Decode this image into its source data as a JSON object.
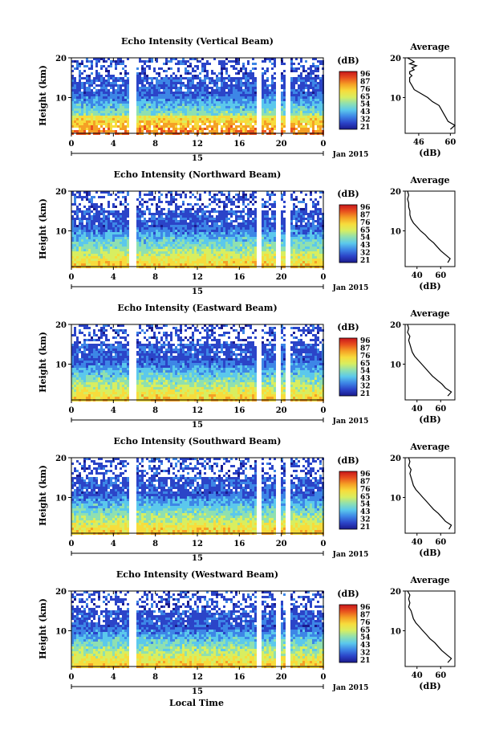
{
  "figure": {
    "date_label": "Jan 2015",
    "day_label": "15",
    "xlabel_bottom": "Local Time",
    "xticks": [
      "0",
      "4",
      "8",
      "12",
      "16",
      "20",
      "0"
    ],
    "colorbar_unit": "(dB)",
    "colorbar_ticks": [
      "96",
      "87",
      "76",
      "65",
      "54",
      "43",
      "32",
      "21"
    ],
    "ylabel": "Height (km)",
    "profile_title": "Average",
    "profile_xlabel": "(dB)"
  },
  "colors": {
    "scale": [
      "#1a1a8c",
      "#2b44c8",
      "#3d86e6",
      "#5bc8ec",
      "#8fe0b0",
      "#d8ee60",
      "#f7dc3c",
      "#f5a025",
      "#e8501e",
      "#c8161b"
    ]
  },
  "chart_data": [
    {
      "type": "heatmap",
      "title": "Echo Intensity (Vertical Beam)",
      "xlabel": "Local Time",
      "ylabel": "Height (km)",
      "xlim": [
        0,
        24
      ],
      "ylim": [
        1,
        20
      ],
      "yticks": [
        "20",
        "10"
      ],
      "colorbar": {
        "label": "(dB)",
        "ticks": [
          96,
          87,
          76,
          65,
          54,
          43,
          32,
          21
        ]
      },
      "data_gaps_local_time": [
        [
          5.5,
          6.1
        ],
        [
          17.6,
          18.1
        ],
        [
          19.4,
          19.9
        ],
        [
          20.3,
          20.7
        ]
      ],
      "profile": {
        "title": "Average",
        "xlabel": "(dB)",
        "xticks": [
          "46",
          "60"
        ],
        "xlim": [
          40,
          62
        ],
        "height_km": [
          20,
          19,
          18.5,
          18,
          17.5,
          17,
          16.5,
          16,
          15.5,
          15,
          14,
          13,
          12,
          11,
          10,
          9,
          8,
          7,
          6,
          5,
          4,
          3,
          2
        ],
        "avg_db": [
          41,
          44,
          42,
          45,
          43,
          44,
          42,
          42,
          43,
          42,
          42,
          43,
          44,
          47,
          50,
          52,
          55,
          56,
          57,
          58,
          59,
          62,
          60
        ]
      }
    },
    {
      "type": "heatmap",
      "title": "Echo Intensity (Northward Beam)",
      "xlabel": "Local Time",
      "ylabel": "Height (km)",
      "xlim": [
        0,
        24
      ],
      "ylim": [
        1,
        20
      ],
      "yticks": [
        "20",
        "10"
      ],
      "colorbar": {
        "label": "(dB)",
        "ticks": [
          96,
          87,
          76,
          65,
          54,
          43,
          32,
          21
        ]
      },
      "data_gaps_local_time": [
        [
          5.5,
          6.1
        ],
        [
          17.6,
          18.1
        ],
        [
          19.4,
          19.9
        ],
        [
          20.3,
          20.7
        ]
      ],
      "profile": {
        "title": "Average",
        "xlabel": "(dB)",
        "xticks": [
          "40",
          "60"
        ],
        "xlim": [
          30,
          72
        ],
        "height_km": [
          20,
          19,
          18,
          17,
          16,
          15,
          14,
          13,
          12,
          11,
          10,
          9,
          8,
          7,
          6,
          5,
          4,
          3,
          2
        ],
        "avg_db": [
          32,
          33,
          32,
          33,
          33,
          34,
          34,
          35,
          37,
          40,
          43,
          47,
          50,
          54,
          57,
          60,
          64,
          68,
          66
        ]
      }
    },
    {
      "type": "heatmap",
      "title": "Echo Intensity (Eastward Beam)",
      "xlabel": "Local Time",
      "ylabel": "Height (km)",
      "xlim": [
        0,
        24
      ],
      "ylim": [
        1,
        20
      ],
      "yticks": [
        "20",
        "10"
      ],
      "colorbar": {
        "label": "(dB)",
        "ticks": [
          96,
          87,
          76,
          65,
          54,
          43,
          32,
          21
        ]
      },
      "data_gaps_local_time": [
        [
          5.5,
          6.1
        ],
        [
          17.6,
          18.1
        ],
        [
          19.4,
          19.9
        ],
        [
          20.3,
          20.7
        ]
      ],
      "profile": {
        "title": "Average",
        "xlabel": "(dB)",
        "xticks": [
          "40",
          "60"
        ],
        "xlim": [
          30,
          72
        ],
        "height_km": [
          20,
          19,
          18,
          17,
          16,
          15,
          14,
          13,
          12,
          11,
          10,
          9,
          8,
          7,
          6,
          5,
          4,
          3,
          2
        ],
        "avg_db": [
          32,
          33,
          32,
          34,
          33,
          34,
          35,
          36,
          38,
          41,
          44,
          47,
          50,
          53,
          57,
          61,
          64,
          69,
          66
        ]
      }
    },
    {
      "type": "heatmap",
      "title": "Echo Intensity (Southward Beam)",
      "xlabel": "Local Time",
      "ylabel": "Height (km)",
      "xlim": [
        0,
        24
      ],
      "ylim": [
        1,
        20
      ],
      "yticks": [
        "20",
        "10"
      ],
      "colorbar": {
        "label": "(dB)",
        "ticks": [
          96,
          87,
          76,
          65,
          54,
          43,
          32,
          21
        ]
      },
      "data_gaps_local_time": [
        [
          5.5,
          6.1
        ],
        [
          17.6,
          18.1
        ],
        [
          19.4,
          19.9
        ],
        [
          20.3,
          20.7
        ]
      ],
      "profile": {
        "title": "Average",
        "xlabel": "(dB)",
        "xticks": [
          "40",
          "60"
        ],
        "xlim": [
          30,
          72
        ],
        "height_km": [
          20,
          19,
          18,
          17,
          16,
          15,
          14,
          13,
          12,
          11,
          10,
          9,
          8,
          7,
          6,
          5,
          4,
          3,
          2
        ],
        "avg_db": [
          33,
          34,
          33,
          35,
          34,
          35,
          36,
          37,
          39,
          42,
          45,
          48,
          51,
          54,
          58,
          61,
          64,
          69,
          67
        ]
      }
    },
    {
      "type": "heatmap",
      "title": "Echo Intensity (Westward Beam)",
      "xlabel": "Local Time",
      "ylabel": "Height (km)",
      "xlim": [
        0,
        24
      ],
      "ylim": [
        1,
        20
      ],
      "yticks": [
        "20",
        "10"
      ],
      "colorbar": {
        "label": "(dB)",
        "ticks": [
          96,
          87,
          76,
          65,
          54,
          43,
          32,
          21
        ]
      },
      "data_gaps_local_time": [
        [
          5.5,
          6.1
        ],
        [
          17.6,
          18.1
        ],
        [
          19.4,
          19.9
        ],
        [
          20.3,
          20.7
        ]
      ],
      "profile": {
        "title": "Average",
        "xlabel": "(dB)",
        "xticks": [
          "40",
          "60"
        ],
        "xlim": [
          30,
          72
        ],
        "height_km": [
          20,
          19,
          18,
          17,
          16,
          15,
          14,
          13,
          12,
          11,
          10,
          9,
          8,
          7,
          6,
          5,
          4,
          3,
          2
        ],
        "avg_db": [
          32,
          34,
          33,
          34,
          33,
          35,
          36,
          37,
          39,
          42,
          45,
          48,
          51,
          55,
          58,
          61,
          65,
          69,
          66
        ]
      }
    }
  ]
}
